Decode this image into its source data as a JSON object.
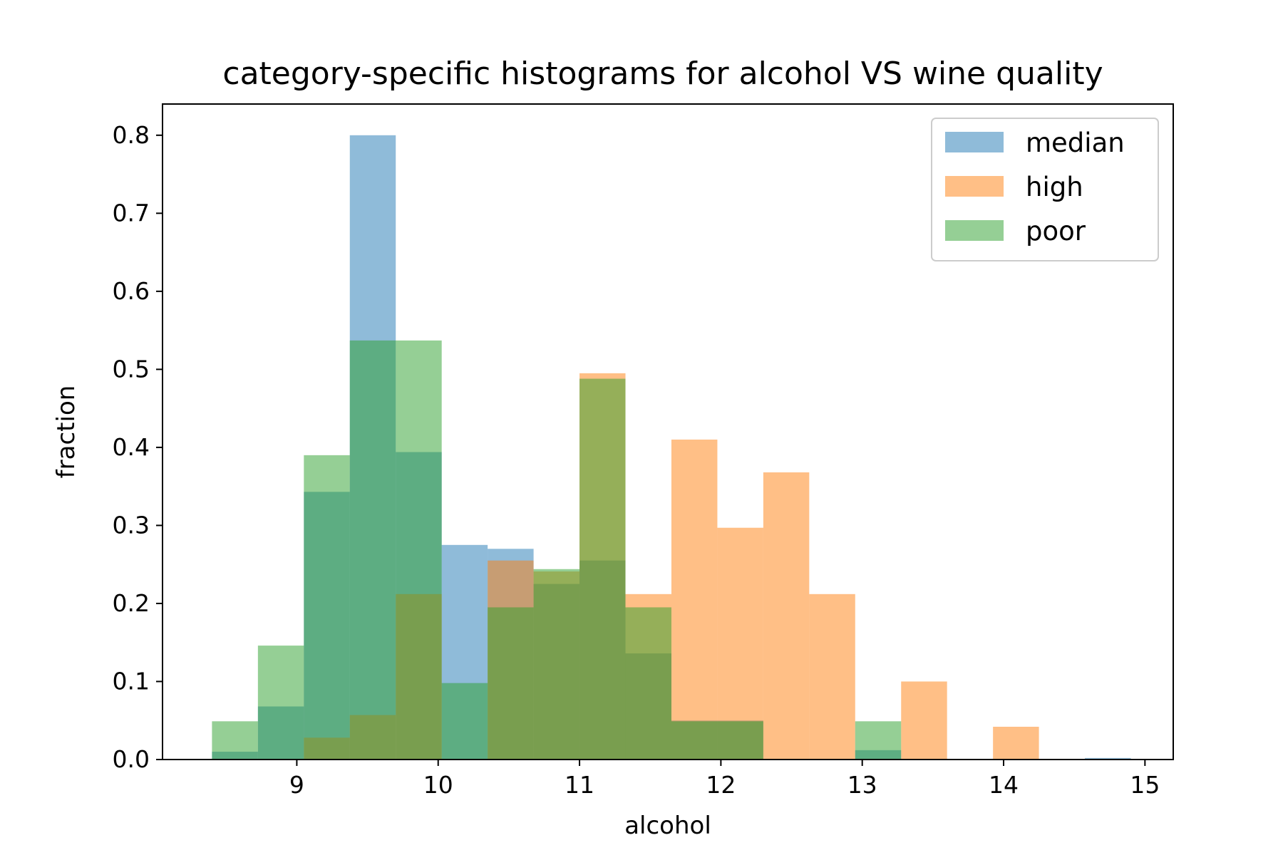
{
  "chart_data": {
    "type": "bar",
    "title": "category-specific histograms for alcohol VS wine quality",
    "xlabel": "alcohol",
    "ylabel": "fraction",
    "xlim": [
      8.05,
      15.2
    ],
    "ylim": [
      0,
      0.84
    ],
    "xticks": [
      9,
      10,
      11,
      12,
      13,
      14,
      15
    ],
    "yticks": [
      0.0,
      0.1,
      0.2,
      0.3,
      0.4,
      0.5,
      0.6,
      0.7,
      0.8
    ],
    "ytick_labels": [
      "0.0",
      "0.1",
      "0.2",
      "0.3",
      "0.4",
      "0.5",
      "0.6",
      "0.7",
      "0.8"
    ],
    "legend_position": "top-right",
    "grid": false,
    "bin_edges": [
      8.4,
      8.725,
      9.05,
      9.375,
      9.7,
      10.025,
      10.35,
      10.675,
      11.0,
      11.325,
      11.65,
      11.975,
      12.3,
      12.625,
      12.95,
      13.275,
      13.6,
      13.925,
      14.25,
      14.575,
      14.9
    ],
    "series": [
      {
        "name": "median",
        "color": "#1f77b4",
        "values": [
          0.01,
          0.068,
          0.343,
          0.8,
          0.394,
          0.275,
          0.27,
          0.225,
          0.255,
          0.136,
          0.05,
          0.05,
          0.0,
          0.0,
          0.012,
          0.0,
          0.0,
          0.0,
          0.0,
          0.002
        ]
      },
      {
        "name": "high",
        "color": "#ff7f0e",
        "values": [
          0.0,
          0.0,
          0.028,
          0.057,
          0.212,
          0.0,
          0.255,
          0.241,
          0.495,
          0.212,
          0.41,
          0.297,
          0.368,
          0.212,
          0.0,
          0.1,
          0.0,
          0.042,
          0.0,
          0.0
        ]
      },
      {
        "name": "poor",
        "color": "#2ca02c",
        "values": [
          0.049,
          0.146,
          0.39,
          0.537,
          0.537,
          0.098,
          0.195,
          0.244,
          0.488,
          0.195,
          0.049,
          0.049,
          0.0,
          0.0,
          0.049,
          0.0,
          0.0,
          0.0,
          0.0,
          0.0
        ]
      }
    ]
  }
}
